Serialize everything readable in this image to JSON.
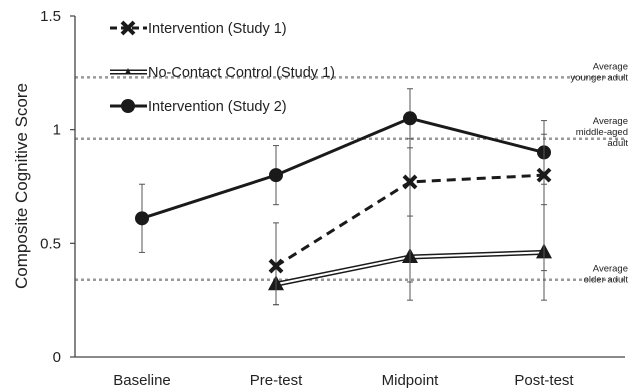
{
  "chart_data": {
    "type": "line",
    "title": "",
    "xlabel": "",
    "ylabel": "Composite Cognitive Score",
    "categories": [
      "Baseline",
      "Pre-test",
      "Midpoint",
      "Post-test"
    ],
    "ylim": [
      0,
      1.5
    ],
    "y_ticks": [
      "0",
      "0.5",
      "1",
      "1.5"
    ],
    "legend_placement": "top-left",
    "grid": false,
    "series": [
      {
        "name": "Intervention (Study 1)",
        "style": "dashed-thick-x-marker",
        "color": "#1a1a1a",
        "values": [
          null,
          0.4,
          0.77,
          0.8
        ],
        "err_low": [
          null,
          0.23,
          0.33,
          0.38
        ],
        "err_high": [
          null,
          0.59,
          0.96,
          0.98
        ]
      },
      {
        "name": "No-Contact Control (Study 1)",
        "style": "double-line-triangle-marker",
        "color": "#1a1a1a",
        "values": [
          null,
          0.32,
          0.44,
          0.46
        ],
        "err_low": [
          null,
          0.23,
          0.25,
          0.25
        ],
        "err_high": [
          null,
          0.4,
          0.62,
          0.67
        ]
      },
      {
        "name": "Intervention (Study 2)",
        "style": "solid-thick-circle-marker",
        "color": "#1a1a1a",
        "values": [
          0.61,
          0.8,
          1.05,
          0.9
        ],
        "err_low": [
          0.46,
          0.67,
          0.92,
          0.76
        ],
        "err_high": [
          0.76,
          0.93,
          1.18,
          1.04
        ]
      }
    ],
    "reference_lines": [
      {
        "y": 1.23,
        "label_lines": [
          "Average",
          "younger adult"
        ]
      },
      {
        "y": 0.96,
        "label_lines": [
          "Average",
          "middle-aged",
          "adult"
        ]
      },
      {
        "y": 0.34,
        "label_lines": [
          "Average",
          "older adult"
        ]
      }
    ]
  }
}
